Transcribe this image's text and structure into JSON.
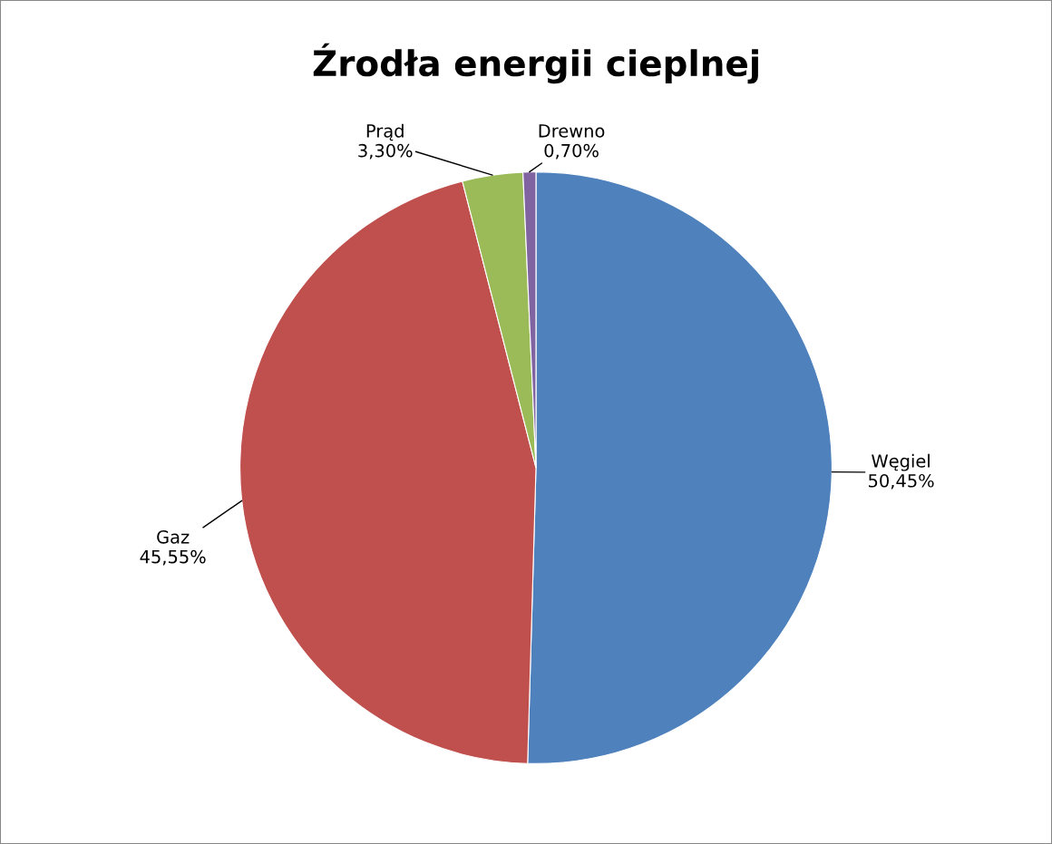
{
  "chart_data": {
    "type": "pie",
    "title": "Źrodła energii cieplnej",
    "categories": [
      "Węgiel",
      "Gaz",
      "Prąd",
      "Drewno"
    ],
    "values": [
      50.45,
      45.55,
      3.3,
      0.7
    ],
    "value_labels": [
      "50,45%",
      "45,55%",
      "3,30%",
      "0,70%"
    ],
    "colors": [
      "#4f81bd",
      "#c0504d",
      "#9bbb59",
      "#8064a2"
    ]
  }
}
